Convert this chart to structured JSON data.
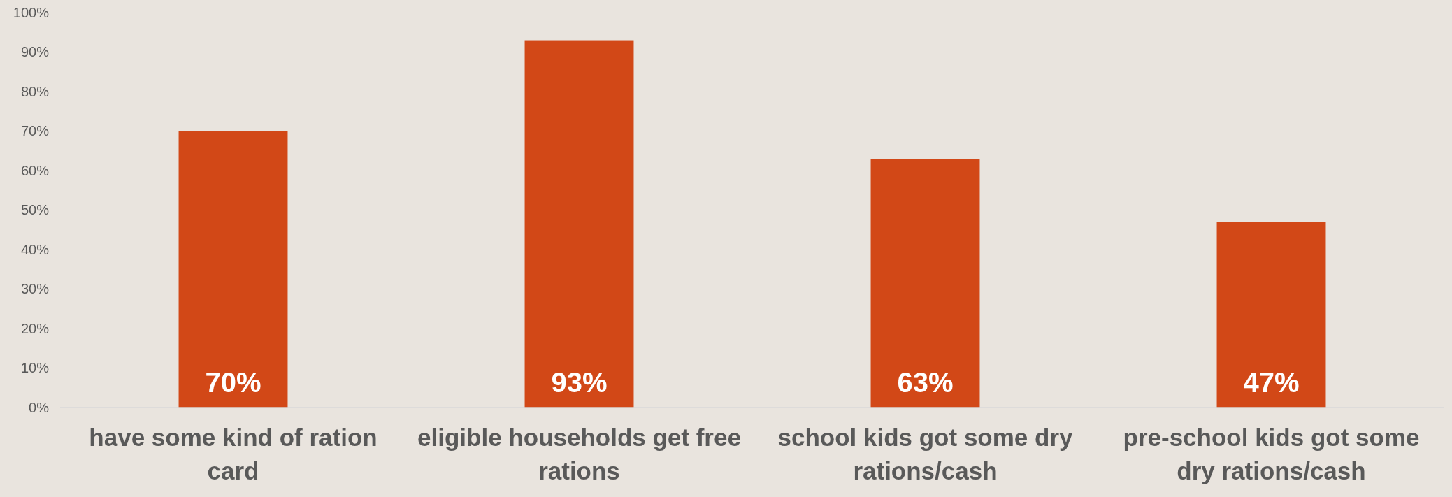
{
  "chart_data": {
    "type": "bar",
    "categories": [
      "have some kind of ration card",
      "eligible households get free rations",
      "school kids got some dry rations/cash",
      "pre-school kids got some dry rations/cash"
    ],
    "values": [
      70,
      93,
      63,
      47
    ],
    "value_labels": [
      "70%",
      "93%",
      "63%",
      "47%"
    ],
    "color": "#d24817",
    "ylim": [
      0,
      100
    ],
    "yticks": [
      {
        "value": 0,
        "label": "0%"
      },
      {
        "value": 10,
        "label": "10%"
      },
      {
        "value": 20,
        "label": "20%"
      },
      {
        "value": 30,
        "label": "30%"
      },
      {
        "value": 40,
        "label": "40%"
      },
      {
        "value": 50,
        "label": "50%"
      },
      {
        "value": 60,
        "label": "60%"
      },
      {
        "value": 70,
        "label": "70%"
      },
      {
        "value": 80,
        "label": "80%"
      },
      {
        "value": 90,
        "label": "90%"
      },
      {
        "value": 100,
        "label": "100%"
      }
    ],
    "grid": false
  }
}
